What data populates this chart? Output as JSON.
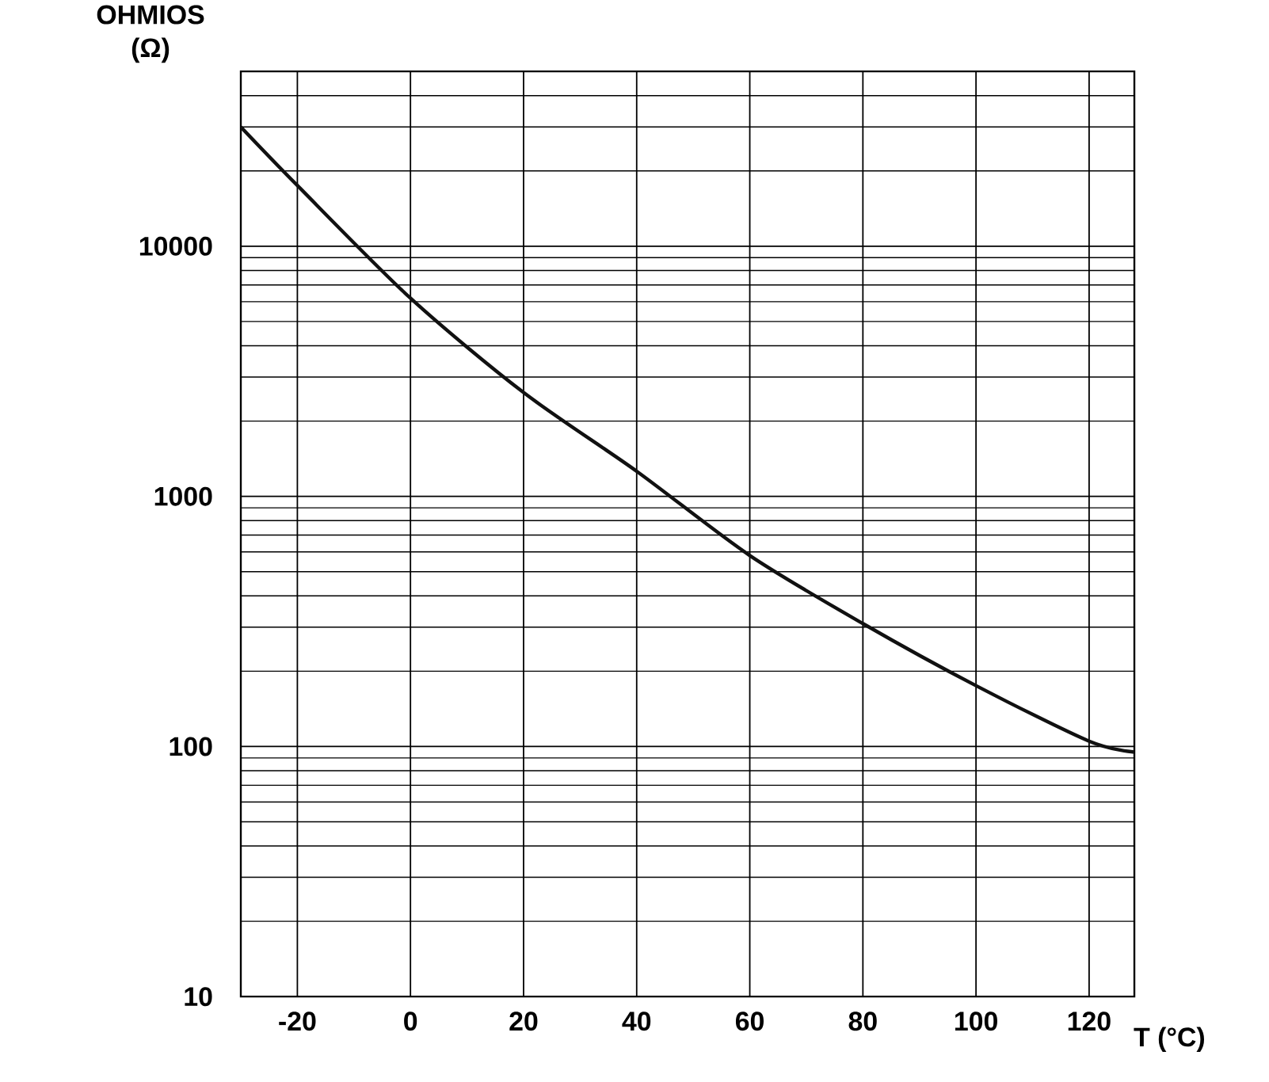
{
  "chart_data": {
    "type": "line",
    "xlabel": "T (°C)",
    "ylabel": "OHMIOS (Ω)",
    "x": [
      -30,
      -20,
      0,
      20,
      40,
      60,
      80,
      100,
      120,
      128
    ],
    "series": [
      {
        "color": "#111111",
        "values": [
          30000,
          17500,
          6200,
          2600,
          1260,
          580,
          310,
          175,
          105,
          95
        ]
      }
    ],
    "xlim": [
      -30,
      128
    ],
    "xticks": [
      -20,
      0,
      20,
      40,
      60,
      80,
      100,
      120
    ],
    "ylim": [
      10,
      50000
    ],
    "yticks": [
      10,
      100,
      1000,
      10000
    ],
    "log": "y",
    "grid": true,
    "marker": "none",
    "line_style": "solid"
  }
}
